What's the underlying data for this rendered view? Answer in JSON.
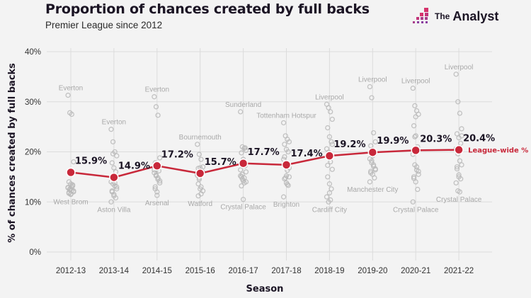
{
  "header": {
    "title": "Proportion of chances created by full backs",
    "subtitle": "Premier League since 2012",
    "brand_prefix": "The",
    "brand_name": "Analyst"
  },
  "colors": {
    "line": "#c8283a",
    "marker": "#c8283a",
    "team_dots": "#b9b9b9",
    "grid": "#dcdcdc",
    "brand_pink": "#d6336c",
    "brand_purple": "#8a3fa0"
  },
  "chart_data": {
    "type": "line",
    "title": "Proportion of chances created by full backs",
    "subtitle": "Premier League since 2012",
    "xlabel": "Season",
    "ylabel": "% of chances created by full backs",
    "ylim": [
      0,
      40
    ],
    "yticks": [
      0,
      10,
      20,
      30,
      40
    ],
    "ytick_labels": [
      "0%",
      "10%",
      "20%",
      "30%",
      "40%"
    ],
    "grid": true,
    "categories": [
      "2012-13",
      "2013-14",
      "2014-15",
      "2015-16",
      "2016-17",
      "2017-18",
      "2018-19",
      "2019-20",
      "2020-21",
      "2021-22"
    ],
    "series": [
      {
        "name": "League-wide %",
        "values": [
          15.9,
          14.9,
          17.2,
          15.7,
          17.7,
          17.4,
          19.2,
          19.9,
          20.3,
          20.4
        ],
        "labels": [
          "15.9%",
          "14.9%",
          "17.2%",
          "15.7%",
          "17.7%",
          "17.4%",
          "19.2%",
          "19.9%",
          "20.3%",
          "20.4%"
        ]
      }
    ],
    "legend_label": "League-wide %",
    "team_extremes": [
      {
        "season": "2012-13",
        "max_team": "Everton",
        "max": 31.3,
        "min_team": "West Brom",
        "min": 11.5
      },
      {
        "season": "2013-14",
        "max_team": "Everton",
        "max": 24.5,
        "min_team": "Aston Villa",
        "min": 10.0
      },
      {
        "season": "2014-15",
        "max_team": "Everton",
        "max": 31.0,
        "min_team": "Arsenal",
        "min": 11.3
      },
      {
        "season": "2015-16",
        "max_team": "Bournemouth",
        "max": 21.5,
        "min_team": "Watford",
        "min": 11.2
      },
      {
        "season": "2016-17",
        "max_team": "Sunderland",
        "max": 28.0,
        "min_team": "Crystal Palace",
        "min": 10.5
      },
      {
        "season": "2017-18",
        "max_team": "Tottenham Hotspur",
        "max": 25.8,
        "min_team": "Brighton",
        "min": 11.0
      },
      {
        "season": "2018-19",
        "max_team": "Liverpool",
        "max": 29.5,
        "min_team": "Cardiff City",
        "min": 10.0
      },
      {
        "season": "2019-20",
        "max_team": "Liverpool",
        "max": 33.0,
        "min_team": "Manchester City",
        "min": 14.0
      },
      {
        "season": "2020-21",
        "max_team": "Liverpool",
        "max": 32.7,
        "min_team": "Crystal Palace",
        "min": 10.0
      },
      {
        "season": "2021-22",
        "max_team": "Liverpool",
        "max": 35.5,
        "min_team": "Crystal Palace",
        "min": 12.0
      }
    ],
    "team_points": [
      [
        31.3,
        27.8,
        27.5,
        18.0,
        14.0,
        13.6,
        13.2,
        12.9,
        12.6,
        12.3,
        12.0,
        11.7,
        11.5,
        13.4,
        12.8,
        12.4,
        13.0,
        12.2,
        11.9,
        11.6
      ],
      [
        24.5,
        22.0,
        20.0,
        19.2,
        17.8,
        16.8,
        16.0,
        14.0,
        13.6,
        13.2,
        12.6,
        12.0,
        11.5,
        10.8,
        10.0,
        19.6,
        13.8,
        13.0,
        12.2,
        11.2
      ],
      [
        31.0,
        29.0,
        27.3,
        18.8,
        17.8,
        16.6,
        16.2,
        15.8,
        15.2,
        14.5,
        13.8,
        12.6,
        11.3,
        17.4,
        16.4,
        15.4,
        14.8,
        14.2,
        13.0,
        12.0
      ],
      [
        21.5,
        19.5,
        18.5,
        17.0,
        16.7,
        16.3,
        16.0,
        15.3,
        14.5,
        13.0,
        12.2,
        11.2,
        16.8,
        16.1,
        15.6,
        14.8,
        11.6,
        15.9,
        13.6,
        12.6
      ],
      [
        28.0,
        21.0,
        20.7,
        20.3,
        19.8,
        18.5,
        17.2,
        16.4,
        15.5,
        14.8,
        14.0,
        13.2,
        10.5,
        20.8,
        15.2,
        14.6,
        13.8,
        16.0,
        15.0,
        14.2
      ],
      [
        25.8,
        23.2,
        22.5,
        22.0,
        21.5,
        20.5,
        20.0,
        18.5,
        17.0,
        16.3,
        15.0,
        14.6,
        13.8,
        13.3,
        11.0,
        14.8,
        13.5,
        16.8,
        19.0,
        15.2
      ],
      [
        29.5,
        28.8,
        28.0,
        26.5,
        24.8,
        23.0,
        22.0,
        20.6,
        19.9,
        18.0,
        16.5,
        15.0,
        13.6,
        12.6,
        11.0,
        10.0,
        10.4,
        21.5,
        17.3,
        11.8
      ],
      [
        33.0,
        30.8,
        23.8,
        22.0,
        21.2,
        20.4,
        19.6,
        18.6,
        17.8,
        17.1,
        16.6,
        16.1,
        15.5,
        14.8,
        14.0,
        18.2,
        17.4,
        16.4,
        15.8,
        19.2
      ],
      [
        32.7,
        29.2,
        28.2,
        27.5,
        25.2,
        23.2,
        21.0,
        19.5,
        17.4,
        16.4,
        15.5,
        14.7,
        14.0,
        12.5,
        10.0,
        23.0,
        17.0,
        16.1,
        15.0,
        27.0
      ],
      [
        35.5,
        30.0,
        27.7,
        24.6,
        23.6,
        22.8,
        21.7,
        20.6,
        19.6,
        18.2,
        17.4,
        16.6,
        15.0,
        14.6,
        13.8,
        12.2,
        12.0,
        23.2,
        17.0,
        15.4
      ]
    ]
  }
}
